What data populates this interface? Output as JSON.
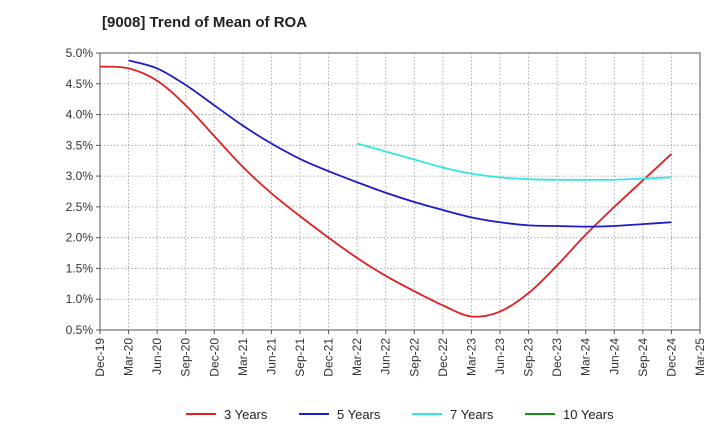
{
  "chart_data": {
    "type": "line",
    "title": "[9008]  Trend of Mean of ROA",
    "xlabel": "",
    "ylabel": "",
    "ylim": [
      0.5,
      5.0
    ],
    "yticks": [
      "0.5%",
      "1.0%",
      "1.5%",
      "2.0%",
      "2.5%",
      "3.0%",
      "3.5%",
      "4.0%",
      "4.5%",
      "5.0%"
    ],
    "categories": [
      "Dec-19",
      "Mar-20",
      "Jun-20",
      "Sep-20",
      "Dec-20",
      "Mar-21",
      "Jun-21",
      "Sep-21",
      "Dec-21",
      "Mar-22",
      "Jun-22",
      "Sep-22",
      "Dec-22",
      "Mar-23",
      "Jun-23",
      "Sep-23",
      "Dec-23",
      "Mar-24",
      "Jun-24",
      "Sep-24",
      "Dec-24",
      "Mar-25"
    ],
    "grid": true,
    "legend": "bottom",
    "series": [
      {
        "name": "3 Years",
        "color": "#e02020",
        "values": [
          4.78,
          4.75,
          4.55,
          4.15,
          3.65,
          3.15,
          2.72,
          2.35,
          2.0,
          1.67,
          1.38,
          1.13,
          0.9,
          0.72,
          0.8,
          1.1,
          1.55,
          2.05,
          2.5,
          2.93,
          3.36,
          null
        ]
      },
      {
        "name": "5 Years",
        "color": "#1c1cc8",
        "values": [
          null,
          4.88,
          4.75,
          4.48,
          4.15,
          3.82,
          3.53,
          3.28,
          3.08,
          2.9,
          2.73,
          2.58,
          2.45,
          2.33,
          2.25,
          2.2,
          2.19,
          2.18,
          2.19,
          2.22,
          2.25,
          null
        ]
      },
      {
        "name": "7 Years",
        "color": "#33e6e6",
        "values": [
          null,
          null,
          null,
          null,
          null,
          null,
          null,
          null,
          null,
          3.53,
          3.4,
          3.27,
          3.14,
          3.04,
          2.98,
          2.95,
          2.94,
          2.94,
          2.94,
          2.96,
          2.98,
          null
        ]
      },
      {
        "name": "10 Years",
        "color": "#1a8c1a",
        "values": [
          null,
          null,
          null,
          null,
          null,
          null,
          null,
          null,
          null,
          null,
          null,
          null,
          null,
          null,
          null,
          null,
          null,
          null,
          null,
          null,
          null,
          null
        ]
      }
    ]
  }
}
